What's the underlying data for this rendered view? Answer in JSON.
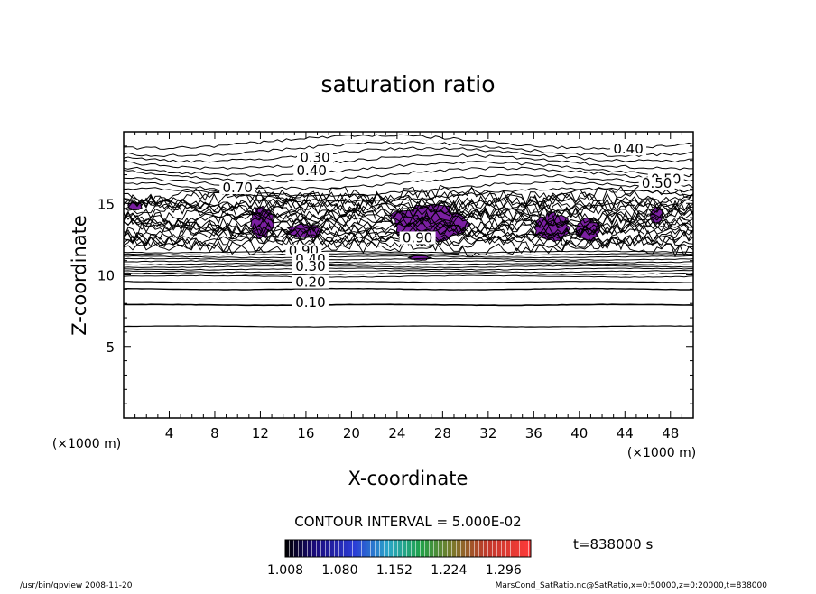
{
  "chart_data": {
    "type": "contour",
    "title": "saturation ratio",
    "xlabel": "X-coordinate",
    "ylabel": "Z-coordinate",
    "x_unit": "(×1000 m)",
    "y_unit": "(×1000 m)",
    "xlim": [
      0,
      50
    ],
    "ylim": [
      0,
      20
    ],
    "x_ticks": [
      4,
      8,
      12,
      16,
      20,
      24,
      28,
      32,
      36,
      40,
      44,
      48
    ],
    "y_ticks": [
      5,
      10,
      15
    ],
    "contour_interval_label": "CONTOUR INTERVAL = 5.000E-02",
    "contour_labels": [
      {
        "text": "0.30",
        "x": 16.8,
        "z": 18.0
      },
      {
        "text": "0.40",
        "x": 16.5,
        "z": 17.1
      },
      {
        "text": "0.40",
        "x": 44.3,
        "z": 18.6
      },
      {
        "text": "0.50",
        "x": 47.6,
        "z": 16.5
      },
      {
        "text": "0.50",
        "x": 46.8,
        "z": 16.2
      },
      {
        "text": "0.70",
        "x": 10.0,
        "z": 15.9
      },
      {
        "text": "0.90",
        "x": 25.8,
        "z": 12.4
      },
      {
        "text": "0.90",
        "x": 15.8,
        "z": 11.5
      },
      {
        "text": "0.40",
        "x": 16.4,
        "z": 10.9
      },
      {
        "text": "0.30",
        "x": 16.4,
        "z": 10.4
      },
      {
        "text": "0.20",
        "x": 16.4,
        "z": 9.3
      },
      {
        "text": "0.10",
        "x": 16.4,
        "z": 7.9
      }
    ],
    "supersaturated_regions": [
      {
        "x": [
          11.0,
          13.2
        ],
        "z": [
          12.4,
          14.9
        ]
      },
      {
        "x": [
          14.2,
          17.6
        ],
        "z": [
          12.5,
          13.6
        ]
      },
      {
        "x": [
          23.0,
          30.5
        ],
        "z": [
          12.1,
          15.0
        ]
      },
      {
        "x": [
          36.0,
          39.3
        ],
        "z": [
          12.2,
          14.4
        ]
      },
      {
        "x": [
          39.5,
          42.0
        ],
        "z": [
          12.3,
          14.0
        ]
      },
      {
        "x": [
          46.2,
          47.4
        ],
        "z": [
          13.5,
          14.8
        ]
      },
      {
        "x": [
          0.3,
          1.7
        ],
        "z": [
          14.5,
          15.1
        ]
      },
      {
        "x": [
          25.0,
          27.0
        ],
        "z": [
          11.0,
          11.4
        ]
      }
    ],
    "colorbar": {
      "ticks": [
        "1.008",
        "1.080",
        "1.152",
        "1.224",
        "1.296"
      ],
      "min": 1.008,
      "max": 1.332
    },
    "time_label": "t=838000 s",
    "footer_left": "/usr/bin/gpview   2008-11-20",
    "footer_right": "MarsCond_SatRatio.nc@SatRatio,x=0:50000,z=0:20000,t=838000"
  },
  "colors": {
    "fill": "#7b1fa2",
    "line": "#000000",
    "background": "#ffffff"
  }
}
